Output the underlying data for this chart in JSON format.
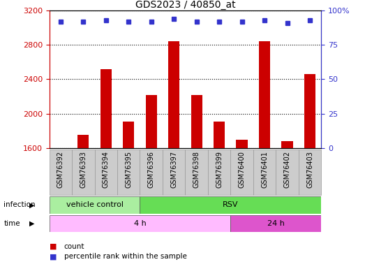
{
  "title": "GDS2023 / 40850_at",
  "samples": [
    "GSM76392",
    "GSM76393",
    "GSM76394",
    "GSM76395",
    "GSM76396",
    "GSM76397",
    "GSM76398",
    "GSM76399",
    "GSM76400",
    "GSM76401",
    "GSM76402",
    "GSM76403"
  ],
  "counts": [
    1600,
    1750,
    2520,
    1910,
    2220,
    2840,
    2220,
    1910,
    1700,
    2840,
    1680,
    2460
  ],
  "percentile_ranks": [
    92,
    92,
    93,
    92,
    92,
    94,
    92,
    92,
    92,
    93,
    91,
    93
  ],
  "ylim_left": [
    1600,
    3200
  ],
  "ylim_right": [
    0,
    100
  ],
  "yticks_left": [
    1600,
    2000,
    2400,
    2800,
    3200
  ],
  "yticks_right": [
    0,
    25,
    50,
    75,
    100
  ],
  "bar_color": "#cc0000",
  "dot_color": "#3333cc",
  "bar_baseline": 1600,
  "infection_groups": [
    {
      "label": "vehicle control",
      "start": 0,
      "end": 4,
      "color": "#aaeea0"
    },
    {
      "label": "RSV",
      "start": 4,
      "end": 12,
      "color": "#66dd55"
    }
  ],
  "time_groups": [
    {
      "label": "4 h",
      "start": 0,
      "end": 8,
      "color": "#ffbbff"
    },
    {
      "label": "24 h",
      "start": 8,
      "end": 12,
      "color": "#dd55cc"
    }
  ],
  "sample_box_color": "#cccccc",
  "grid_color": "black",
  "axis_color_left": "#cc0000",
  "axis_color_right": "#3333cc"
}
